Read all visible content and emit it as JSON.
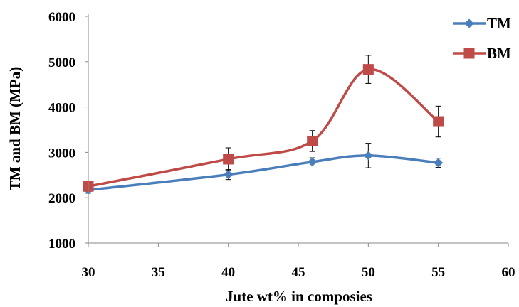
{
  "chart_data": {
    "type": "line",
    "xlabel": "Jute wt% in composies",
    "ylabel": "TM and BM (MPa)",
    "xlim": [
      30,
      60
    ],
    "ylim": [
      1000,
      6000
    ],
    "x_ticks": [
      "30",
      "35",
      "40",
      "45",
      "50",
      "55",
      "60"
    ],
    "y_ticks": [
      "1000",
      "2000",
      "3000",
      "4000",
      "5000",
      "6000"
    ],
    "grid": false,
    "legend_position": "top-right",
    "series": [
      {
        "name": "TM",
        "color": "#4a7ebb",
        "marker": "diamond",
        "x": [
          30,
          40,
          46,
          50,
          55
        ],
        "values": [
          2170,
          2510,
          2790,
          2930,
          2770
        ],
        "error": [
          70,
          110,
          90,
          270,
          100
        ]
      },
      {
        "name": "BM",
        "color": "#be4b48",
        "marker": "square",
        "x": [
          30,
          40,
          46,
          50,
          55
        ],
        "values": [
          2250,
          2850,
          3250,
          4830,
          3680
        ],
        "error": [
          60,
          250,
          230,
          310,
          340
        ]
      }
    ]
  }
}
